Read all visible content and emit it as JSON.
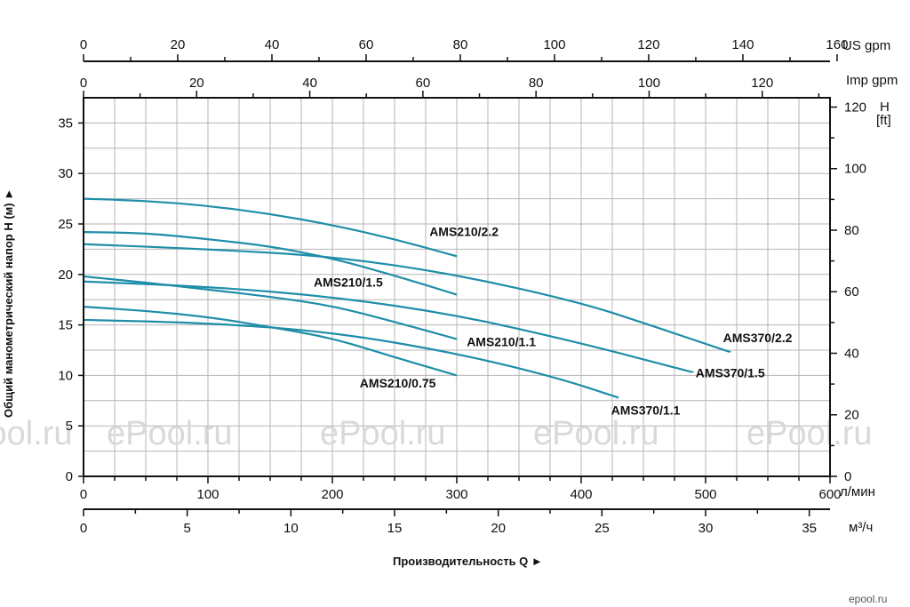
{
  "chart_data": {
    "type": "line",
    "title": "",
    "xlabel": "Производительность Q ►",
    "ylabel": "Общий манометрический напор H (м) ►",
    "x_unit": "л/мин",
    "x_secondary_unit": "м³/ч",
    "x_top_us_unit": "US gpm",
    "x_top_imp_unit": "Imp gpm",
    "y_right_unit_line1": "H",
    "y_right_unit_line2": "[ft]",
    "xlim": [
      0,
      600
    ],
    "ylim": [
      0,
      37.5
    ],
    "grid": true,
    "x_ticks": [
      0,
      100,
      200,
      300,
      400,
      500,
      600
    ],
    "y_ticks": [
      0,
      5,
      10,
      15,
      20,
      25,
      30,
      35
    ],
    "m3h_ticks": [
      0,
      5,
      10,
      15,
      20,
      25,
      30,
      35
    ],
    "usgpm_ticks": [
      0,
      20,
      40,
      60,
      80,
      100,
      120,
      140,
      160
    ],
    "impgpm_ticks": [
      0,
      20,
      40,
      60,
      80,
      100,
      120
    ],
    "ft_ticks": [
      0,
      20,
      40,
      60,
      80,
      100,
      120
    ],
    "series": [
      {
        "name": "AMS210/2.2",
        "x": [
          0,
          50,
          100,
          150,
          200,
          250,
          300
        ],
        "y": [
          27.5,
          27.3,
          26.8,
          26.0,
          24.9,
          23.5,
          21.8
        ]
      },
      {
        "name": "AMS210/1.5",
        "x": [
          0,
          50,
          100,
          150,
          200,
          250,
          300
        ],
        "y": [
          24.2,
          24.1,
          23.5,
          22.8,
          21.6,
          19.9,
          18.0
        ]
      },
      {
        "name": "AMS210/1.1",
        "x": [
          0,
          50,
          100,
          150,
          200,
          250,
          300
        ],
        "y": [
          19.8,
          19.2,
          18.5,
          17.8,
          16.9,
          15.3,
          13.6
        ]
      },
      {
        "name": "AMS210/0.75",
        "x": [
          0,
          50,
          100,
          150,
          200,
          250,
          300
        ],
        "y": [
          16.8,
          16.4,
          15.8,
          14.8,
          13.7,
          11.8,
          10.0
        ]
      },
      {
        "name": "AMS370/2.2",
        "x": [
          0,
          100,
          200,
          300,
          400,
          450,
          520
        ],
        "y": [
          23.0,
          22.5,
          21.8,
          20.0,
          17.2,
          15.2,
          12.3
        ]
      },
      {
        "name": "AMS370/1.5",
        "x": [
          0,
          100,
          200,
          300,
          400,
          490
        ],
        "y": [
          19.3,
          18.8,
          17.8,
          16.0,
          13.2,
          10.3
        ]
      },
      {
        "name": "AMS370/1.1",
        "x": [
          0,
          100,
          200,
          300,
          380,
          430
        ],
        "y": [
          15.5,
          15.2,
          14.3,
          12.2,
          9.8,
          7.8
        ]
      }
    ],
    "line_color": "#1f8ea8"
  },
  "watermark": "ePool.ru",
  "corner_mark": "epool.ru"
}
